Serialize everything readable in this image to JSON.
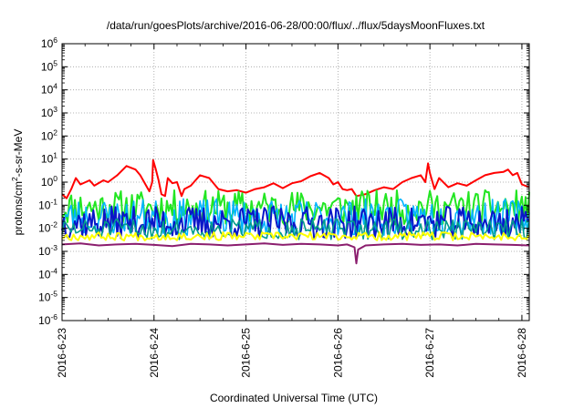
{
  "chart_data": {
    "type": "line",
    "title": "/data/run/goesPlots/archive/2016-06-28/00:00/flux/../flux/5daysMoonFluxes.txt",
    "xlabel": "Coordinated Universal Time (UTC)",
    "ylabel": {
      "base": "protons/cm",
      "sup": "2",
      "rest": "-s-sr-MeV"
    },
    "y_scale": "log",
    "ylim": [
      1e-06,
      1000000.0
    ],
    "xlim": [
      0,
      5.08
    ],
    "grid": true,
    "legend": "none",
    "x_ticks": [
      {
        "v": 0,
        "label": "2016-6-23"
      },
      {
        "v": 1,
        "label": "2016-6-24"
      },
      {
        "v": 2,
        "label": "2016-6-25"
      },
      {
        "v": 3,
        "label": "2016-6-26"
      },
      {
        "v": 4,
        "label": "2016-6-27"
      },
      {
        "v": 5,
        "label": "2016-6-28"
      }
    ],
    "y_ticks": [
      {
        "v": -6,
        "base": "10",
        "exp": "-6"
      },
      {
        "v": -5,
        "base": "10",
        "exp": "-5"
      },
      {
        "v": -4,
        "base": "10",
        "exp": "-4"
      },
      {
        "v": -3,
        "base": "10",
        "exp": "-3"
      },
      {
        "v": -2,
        "base": "10",
        "exp": "-2"
      },
      {
        "v": -1,
        "base": "10",
        "exp": "-1"
      },
      {
        "v": 0,
        "base": "10",
        "exp": "0"
      },
      {
        "v": 1,
        "base": "10",
        "exp": "1"
      },
      {
        "v": 2,
        "base": "10",
        "exp": "2"
      },
      {
        "v": 3,
        "base": "10",
        "exp": "3"
      },
      {
        "v": 4,
        "base": "10",
        "exp": "4"
      },
      {
        "v": 5,
        "base": "10",
        "exp": "5"
      },
      {
        "v": 6,
        "base": "10",
        "exp": "6"
      }
    ],
    "series": [
      {
        "color": "#ff0000",
        "width": 2.0,
        "points": [
          [
            0,
            0.3
          ],
          [
            0.05,
            0.2
          ],
          [
            0.1,
            0.5
          ],
          [
            0.15,
            1.5
          ],
          [
            0.2,
            0.8
          ],
          [
            0.3,
            1.2
          ],
          [
            0.35,
            0.7
          ],
          [
            0.45,
            1.2
          ],
          [
            0.5,
            1.0
          ],
          [
            0.6,
            2.0
          ],
          [
            0.7,
            5.0
          ],
          [
            0.8,
            3.5
          ],
          [
            0.85,
            2.0
          ],
          [
            0.9,
            0.9
          ],
          [
            0.95,
            0.4
          ],
          [
            0.98,
            1.0
          ],
          [
            0.99,
            9.0
          ],
          [
            1.02,
            3.5
          ],
          [
            1.05,
            1.2
          ],
          [
            1.08,
            0.3
          ],
          [
            1.12,
            0.25
          ],
          [
            1.15,
            1.5
          ],
          [
            1.2,
            0.9
          ],
          [
            1.25,
            1.0
          ],
          [
            1.3,
            0.25
          ],
          [
            1.33,
            0.5
          ],
          [
            1.4,
            0.7
          ],
          [
            1.5,
            2.0
          ],
          [
            1.6,
            1.5
          ],
          [
            1.7,
            0.5
          ],
          [
            1.8,
            0.4
          ],
          [
            1.9,
            0.45
          ],
          [
            2.0,
            0.35
          ],
          [
            2.1,
            0.5
          ],
          [
            2.2,
            0.6
          ],
          [
            2.3,
            0.9
          ],
          [
            2.4,
            0.55
          ],
          [
            2.5,
            0.9
          ],
          [
            2.6,
            1.1
          ],
          [
            2.7,
            1.8
          ],
          [
            2.8,
            2.5
          ],
          [
            2.9,
            1.5
          ],
          [
            2.95,
            0.8
          ],
          [
            3.0,
            1.0
          ],
          [
            3.05,
            0.5
          ],
          [
            3.1,
            0.45
          ],
          [
            3.15,
            0.5
          ],
          [
            3.2,
            0.25
          ],
          [
            3.3,
            0.3
          ],
          [
            3.4,
            0.45
          ],
          [
            3.5,
            0.6
          ],
          [
            3.6,
            0.5
          ],
          [
            3.7,
            1.0
          ],
          [
            3.8,
            1.5
          ],
          [
            3.9,
            2.0
          ],
          [
            3.95,
            1.0
          ],
          [
            3.98,
            6.5
          ],
          [
            4.0,
            2.5
          ],
          [
            4.05,
            0.5
          ],
          [
            4.1,
            1.5
          ],
          [
            4.2,
            0.6
          ],
          [
            4.3,
            0.9
          ],
          [
            4.4,
            0.7
          ],
          [
            4.5,
            1.2
          ],
          [
            4.6,
            2.0
          ],
          [
            4.7,
            2.5
          ],
          [
            4.8,
            2.8
          ],
          [
            4.85,
            3.5
          ],
          [
            4.9,
            2.0
          ],
          [
            4.95,
            2.5
          ],
          [
            5.0,
            0.8
          ],
          [
            5.08,
            0.6
          ]
        ]
      },
      {
        "color": "#22e622",
        "width": 2.0,
        "gen": {
          "base": 0.08,
          "amp": 0.75,
          "step": 0.02,
          "seed": 11
        }
      },
      {
        "color": "#00b4ff",
        "width": 1.6,
        "gen": {
          "base": 0.03,
          "amp": 0.8,
          "step": 0.02,
          "seed": 23
        }
      },
      {
        "color": "#0a16c8",
        "width": 2.0,
        "gen": {
          "base": 0.018,
          "amp": 0.7,
          "step": 0.02,
          "seed": 37
        }
      },
      {
        "color": "#009c8c",
        "width": 1.6,
        "gen": {
          "base": 0.009,
          "amp": 0.45,
          "step": 0.025,
          "seed": 51
        }
      },
      {
        "color": "#ffff00",
        "width": 2.0,
        "gen": {
          "base": 0.0045,
          "amp": 0.18,
          "step": 0.025,
          "seed": 67
        }
      },
      {
        "color": "#8b1e6e",
        "width": 2.0,
        "points": [
          [
            0,
            0.002
          ],
          [
            0.2,
            0.0022
          ],
          [
            0.4,
            0.0018
          ],
          [
            0.6,
            0.002
          ],
          [
            0.8,
            0.0021
          ],
          [
            1.0,
            0.0019
          ],
          [
            1.2,
            0.0017
          ],
          [
            1.4,
            0.0021
          ],
          [
            1.6,
            0.002
          ],
          [
            1.8,
            0.0018
          ],
          [
            2.0,
            0.002
          ],
          [
            2.2,
            0.0022
          ],
          [
            2.4,
            0.0019
          ],
          [
            2.6,
            0.0021
          ],
          [
            2.8,
            0.002
          ],
          [
            3.0,
            0.0018
          ],
          [
            3.1,
            0.002
          ],
          [
            3.18,
            0.0015
          ],
          [
            3.2,
            0.0003
          ],
          [
            3.22,
            0.0012
          ],
          [
            3.3,
            0.0018
          ],
          [
            3.5,
            0.002
          ],
          [
            3.7,
            0.0021
          ],
          [
            3.9,
            0.0019
          ],
          [
            4.1,
            0.002
          ],
          [
            4.3,
            0.0018
          ],
          [
            4.5,
            0.0021
          ],
          [
            4.7,
            0.002
          ],
          [
            4.9,
            0.0019
          ],
          [
            5.08,
            0.0018
          ]
        ]
      }
    ]
  }
}
